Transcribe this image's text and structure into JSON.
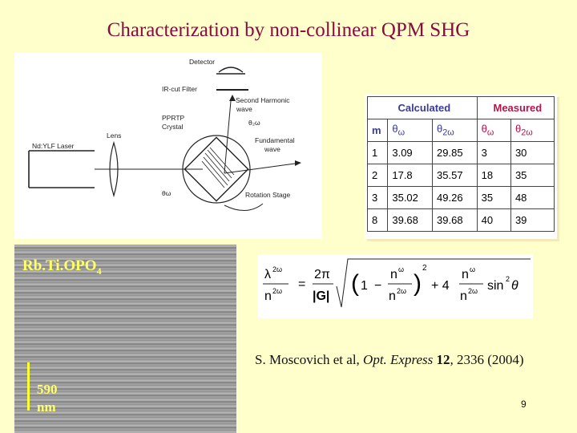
{
  "slide": {
    "title": "Characterization by non-collinear QPM SHG",
    "page_number": "9"
  },
  "diagram": {
    "labels": {
      "detector": "Detector",
      "ir_filter": "IR-cut Filter",
      "second_harmonic": "Second Harmonic",
      "wave": "wave",
      "pprtp": "PPRTP",
      "crystal": "Crystal",
      "theta_2w": "θ₂ω",
      "lens": "Lens",
      "laser": "Nd:YLF Laser",
      "fundamental": "Fundamental",
      "fund_wave": "wave",
      "theta_w": "θω",
      "rotation_stage": "Rotation Stage"
    }
  },
  "table": {
    "header_calculated": "Calculated",
    "header_measured": "Measured",
    "col_m": "m",
    "col_calc_tw": "θ",
    "col_calc_tw_sub": "ω",
    "col_calc_t2w": "θ",
    "col_calc_t2w_sub": "2ω",
    "col_meas_tw": "θ",
    "col_meas_tw_sub": "ω",
    "col_meas_t2w": "θ",
    "col_meas_t2w_sub": "2ω",
    "rows": [
      {
        "m": "1",
        "calc_tw": "3.09",
        "calc_t2w": "29.85",
        "meas_tw": "3",
        "meas_t2w": "30"
      },
      {
        "m": "2",
        "calc_tw": "17.8",
        "calc_t2w": "35.57",
        "meas_tw": "18",
        "meas_t2w": "35"
      },
      {
        "m": "3",
        "calc_tw": "35.02",
        "calc_t2w": "49.26",
        "meas_tw": "35",
        "meas_t2w": "48"
      },
      {
        "m": "8",
        "calc_tw": "39.68",
        "calc_t2w": "39.68",
        "meas_tw": "40",
        "meas_t2w": "39"
      }
    ]
  },
  "micrograph": {
    "material": "Rb.Ti.OPO",
    "subscript": "4",
    "scale_value": "590",
    "scale_unit": "nm"
  },
  "formula": {
    "lambda": "λ",
    "exp_2w": "2ω",
    "n": "n",
    "equals": "=",
    "two_pi": "2π",
    "G": "|G|",
    "one": "1",
    "minus": "−",
    "exp_w": "ω",
    "squared": "2",
    "plus_four": "+ 4",
    "sin": "sin",
    "theta": "θ"
  },
  "citation": {
    "authors": "S. Moscovich et al, ",
    "journal": "Opt. Express",
    "volume": " 12",
    "rest": ", 2336 (2004)"
  }
}
